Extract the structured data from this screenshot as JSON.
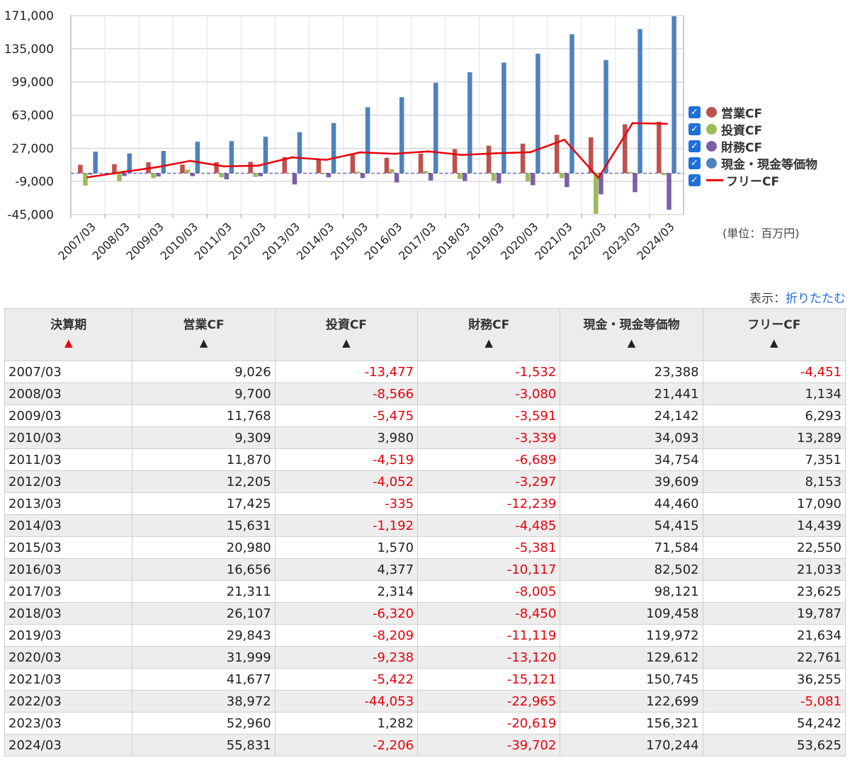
{
  "chart_data": {
    "type": "bar",
    "categories": [
      "2007/03",
      "2008/03",
      "2009/03",
      "2010/03",
      "2011/03",
      "2012/03",
      "2013/03",
      "2014/03",
      "2015/03",
      "2016/03",
      "2017/03",
      "2018/03",
      "2019/03",
      "2020/03",
      "2021/03",
      "2022/03",
      "2023/03",
      "2024/03"
    ],
    "series": [
      {
        "name": "営業CF",
        "type": "bar",
        "color": "#c0504d",
        "values": [
          9026,
          9700,
          11768,
          9309,
          11870,
          12205,
          17425,
          15631,
          20980,
          16656,
          21311,
          26107,
          29843,
          31999,
          41677,
          38972,
          52960,
          55831
        ]
      },
      {
        "name": "投資CF",
        "type": "bar",
        "color": "#9bbb59",
        "values": [
          -13477,
          -8566,
          -5475,
          3980,
          -4519,
          -4052,
          -335,
          -1192,
          1570,
          4377,
          2314,
          -6320,
          -8209,
          -9238,
          -5422,
          -44053,
          1282,
          -2206
        ]
      },
      {
        "name": "財務CF",
        "type": "bar",
        "color": "#7b5ea7",
        "values": [
          -1532,
          -3080,
          -3591,
          -3339,
          -6689,
          -3297,
          -12239,
          -4485,
          -5381,
          -10117,
          -8005,
          -8450,
          -11119,
          -13120,
          -15121,
          -22965,
          -20619,
          -39702
        ]
      },
      {
        "name": "現金・現金等価物",
        "type": "bar",
        "color": "#4f81bd",
        "values": [
          23388,
          21441,
          24142,
          34093,
          34754,
          39609,
          44460,
          54415,
          71584,
          82502,
          98121,
          109458,
          119972,
          129612,
          150745,
          122699,
          156321,
          170244
        ]
      },
      {
        "name": "フリーCF",
        "type": "line",
        "color": "#e8000b",
        "values": [
          -4451,
          1134,
          6293,
          13289,
          7351,
          8153,
          17090,
          14439,
          22550,
          21033,
          23625,
          19787,
          21634,
          22761,
          36255,
          -5081,
          54242,
          53625
        ]
      }
    ],
    "yticks": [
      "171,000",
      "135,000",
      "99,000",
      "63,000",
      "27,000",
      "-9,000",
      "-45,000"
    ],
    "ylim": [
      -45000,
      171000
    ],
    "grid": true,
    "legend": "right",
    "unit_label": "(単位：百万円)"
  },
  "display": {
    "label": "表示：",
    "toggle": "折りたたむ"
  },
  "table": {
    "headers": [
      "決算期",
      "営業CF",
      "投資CF",
      "財務CF",
      "現金・現金等価物",
      "フリーCF"
    ],
    "rows": [
      [
        "2007/03",
        "9,026",
        "-13,477",
        "-1,532",
        "23,388",
        "-4,451"
      ],
      [
        "2008/03",
        "9,700",
        "-8,566",
        "-3,080",
        "21,441",
        "1,134"
      ],
      [
        "2009/03",
        "11,768",
        "-5,475",
        "-3,591",
        "24,142",
        "6,293"
      ],
      [
        "2010/03",
        "9,309",
        "3,980",
        "-3,339",
        "34,093",
        "13,289"
      ],
      [
        "2011/03",
        "11,870",
        "-4,519",
        "-6,689",
        "34,754",
        "7,351"
      ],
      [
        "2012/03",
        "12,205",
        "-4,052",
        "-3,297",
        "39,609",
        "8,153"
      ],
      [
        "2013/03",
        "17,425",
        "-335",
        "-12,239",
        "44,460",
        "17,090"
      ],
      [
        "2014/03",
        "15,631",
        "-1,192",
        "-4,485",
        "54,415",
        "14,439"
      ],
      [
        "2015/03",
        "20,980",
        "1,570",
        "-5,381",
        "71,584",
        "22,550"
      ],
      [
        "2016/03",
        "16,656",
        "4,377",
        "-10,117",
        "82,502",
        "21,033"
      ],
      [
        "2017/03",
        "21,311",
        "2,314",
        "-8,005",
        "98,121",
        "23,625"
      ],
      [
        "2018/03",
        "26,107",
        "-6,320",
        "-8,450",
        "109,458",
        "19,787"
      ],
      [
        "2019/03",
        "29,843",
        "-8,209",
        "-11,119",
        "119,972",
        "21,634"
      ],
      [
        "2020/03",
        "31,999",
        "-9,238",
        "-13,120",
        "129,612",
        "22,761"
      ],
      [
        "2021/03",
        "41,677",
        "-5,422",
        "-15,121",
        "150,745",
        "36,255"
      ],
      [
        "2022/03",
        "38,972",
        "-44,053",
        "-22,965",
        "122,699",
        "-5,081"
      ],
      [
        "2023/03",
        "52,960",
        "1,282",
        "-20,619",
        "156,321",
        "54,242"
      ],
      [
        "2024/03",
        "55,831",
        "-2,206",
        "-39,702",
        "170,244",
        "53,625"
      ]
    ]
  }
}
